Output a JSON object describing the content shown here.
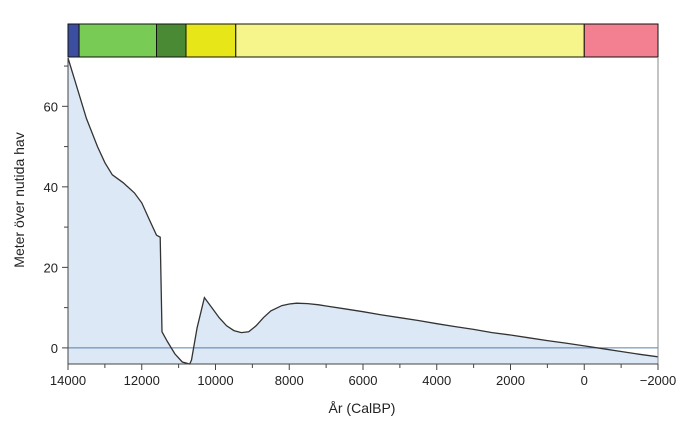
{
  "chart_data": {
    "type": "area",
    "title": "",
    "xlabel": "År (CalBP)",
    "ylabel": "Meter över nutida hav",
    "xlim": [
      14000,
      -2000
    ],
    "ylim": [
      -4,
      72
    ],
    "x_ticks": [
      14000,
      12000,
      10000,
      8000,
      6000,
      4000,
      2000,
      0,
      -2000
    ],
    "x_tick_labels": [
      "14000",
      "12000",
      "10000",
      "8000",
      "6000",
      "4000",
      "2000",
      "0",
      "−2000"
    ],
    "y_ticks": [
      0,
      20,
      40,
      60
    ],
    "y_tick_labels": [
      "0",
      "20",
      "40",
      "60"
    ],
    "grid": false,
    "reference_line_y": 0,
    "colors": {
      "fill": "#dce8f5",
      "line": "#333333",
      "reference_line": "#5a7fa8"
    },
    "series": [
      {
        "x": [
          14000,
          13800,
          13500,
          13200,
          13000,
          12800,
          12500,
          12200,
          12000,
          11800,
          11600,
          11500,
          11450,
          11300,
          11100,
          10900,
          10700,
          10650,
          10500,
          10300,
          10100,
          9900,
          9700,
          9500,
          9300,
          9100,
          8900,
          8700,
          8500,
          8200,
          8000,
          7800,
          7500,
          7200,
          7000,
          6500,
          6000,
          5500,
          5000,
          4500,
          4000,
          3500,
          3000,
          2500,
          2000,
          1500,
          1000,
          500,
          0,
          -500,
          -1000,
          -1500,
          -2000
        ],
        "y": [
          72,
          66,
          57,
          50,
          46,
          43,
          41,
          38.5,
          36,
          32,
          28,
          27.5,
          4,
          1.5,
          -1.5,
          -3.5,
          -4,
          -3,
          5,
          12.5,
          10,
          7.5,
          5.5,
          4.3,
          3.8,
          4,
          5.5,
          7.5,
          9.2,
          10.5,
          10.9,
          11.1,
          11,
          10.7,
          10.4,
          9.7,
          9.0,
          8.2,
          7.5,
          6.8,
          6.0,
          5.3,
          4.6,
          3.8,
          3.2,
          2.5,
          1.8,
          1.2,
          0.5,
          -0.2,
          -0.9,
          -1.6,
          -2.2
        ]
      }
    ],
    "period_bar": [
      {
        "start": 14000,
        "end": 13700,
        "color": "#3b4ea0"
      },
      {
        "start": 13700,
        "end": 11600,
        "color": "#78cc55"
      },
      {
        "start": 11600,
        "end": 10800,
        "color": "#4a8a35"
      },
      {
        "start": 10800,
        "end": 9450,
        "color": "#e6e619"
      },
      {
        "start": 9450,
        "end": 0,
        "color": "#f5f58c"
      },
      {
        "start": 0,
        "end": -2000,
        "color": "#f28090"
      }
    ]
  }
}
